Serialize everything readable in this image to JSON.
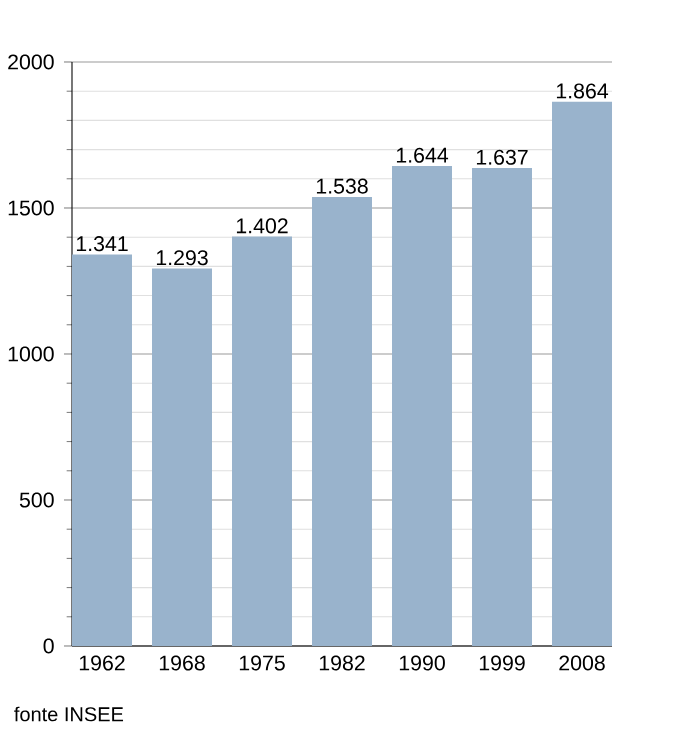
{
  "chart_data": {
    "type": "bar",
    "categories": [
      "1962",
      "1968",
      "1975",
      "1982",
      "1990",
      "1999",
      "2008"
    ],
    "values": [
      1341,
      1293,
      1402,
      1538,
      1644,
      1637,
      1864
    ],
    "value_labels": [
      "1.341",
      "1.293",
      "1.402",
      "1.538",
      "1.644",
      "1.637",
      "1.864"
    ],
    "color": "#99b3cc",
    "ylim": [
      0,
      2000
    ],
    "yticks": [
      0,
      500,
      1000,
      1500,
      2000
    ],
    "grid": "y",
    "annotations": [
      "fonte INSEE"
    ]
  }
}
